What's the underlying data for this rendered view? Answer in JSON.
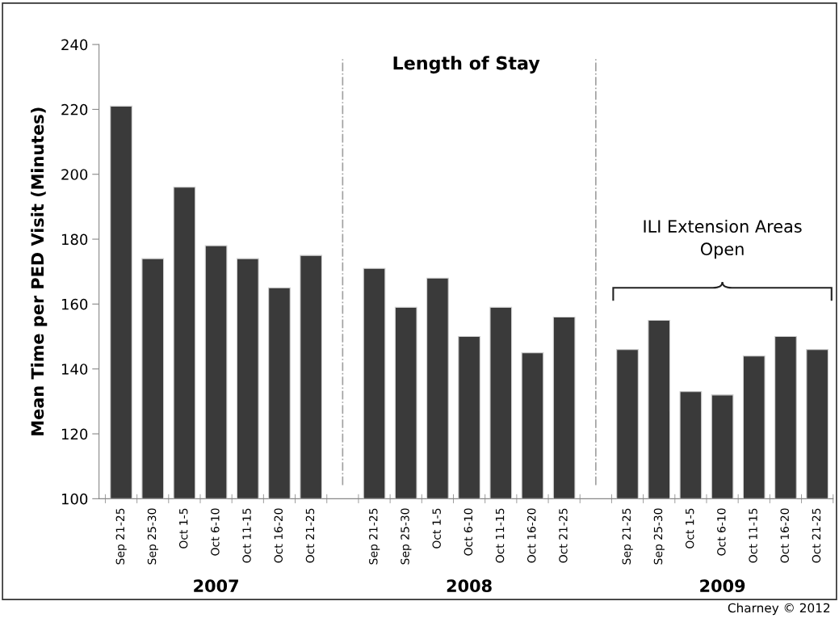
{
  "chart_data": {
    "type": "bar",
    "title": "Length of Stay",
    "ylabel": "Mean Time per PED Visit (Minutes)",
    "categories": [
      "Sep 21-25",
      "Sep 25-30",
      "Oct 1-5",
      "Oct 6-10",
      "Oct 11-15",
      "Oct 16-20",
      "Oct 21-25",
      null,
      "Sep 21-25",
      "Sep 25-30",
      "Oct 1-5",
      "Oct 6-10",
      "Oct 11-15",
      "Oct 16-20",
      "Oct 21-25",
      null,
      "Sep 21-25",
      "Sep 25-30",
      "Oct 1-5",
      "Oct 6-10",
      "Oct 11-15",
      "Oct 16-20",
      "Oct 21-25"
    ],
    "values": [
      221,
      174,
      196,
      178,
      174,
      165,
      175,
      null,
      171,
      159,
      168,
      150,
      159,
      145,
      156,
      null,
      146,
      155,
      133,
      132,
      144,
      150,
      146
    ],
    "color": "#3a3a3a",
    "ylim": [
      100,
      240
    ],
    "yticks": [
      100,
      120,
      140,
      160,
      180,
      200,
      220,
      240
    ],
    "annotations": [
      "2007",
      "2008",
      "2009",
      "ILI Extension Areas\nOpen",
      "Charney © 2012"
    ]
  }
}
